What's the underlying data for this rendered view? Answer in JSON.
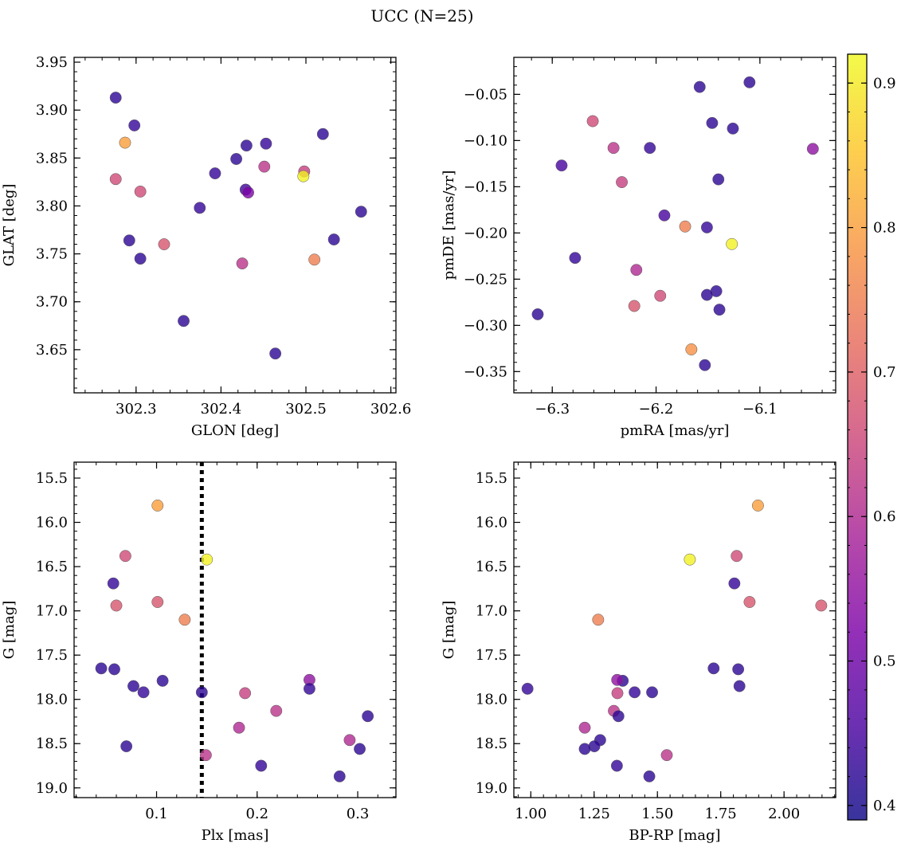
{
  "title": "UCC (N=25)",
  "colorbar": {
    "min": 0.39,
    "max": 0.92,
    "ticks": [
      "0.4",
      "0.5",
      "0.6",
      "0.7",
      "0.8",
      "0.9"
    ],
    "tick_values": [
      0.4,
      0.5,
      0.6,
      0.7,
      0.8,
      0.9
    ],
    "colormap": "plasma"
  },
  "chart_data": [
    {
      "type": "scatter",
      "id": "glon-glat",
      "xlabel": "GLON [deg]",
      "ylabel": "GLAT [deg]",
      "xlim": [
        302.227,
        302.606
      ],
      "ylim": [
        3.605,
        3.955
      ],
      "xticks": [
        302.3,
        302.4,
        302.5,
        302.6
      ],
      "xticklabels": [
        "302.3",
        "302.4",
        "302.5",
        "302.6"
      ],
      "yticks": [
        3.65,
        3.7,
        3.75,
        3.8,
        3.85,
        3.9,
        3.95
      ],
      "yticklabels": [
        "3.65",
        "3.70",
        "3.75",
        "3.80",
        "3.85",
        "3.90",
        "3.95"
      ],
      "points": [
        {
          "x": 302.276,
          "y": 3.913,
          "c": 0.42
        },
        {
          "x": 302.298,
          "y": 3.884,
          "c": 0.43
        },
        {
          "x": 302.287,
          "y": 3.866,
          "c": 0.8
        },
        {
          "x": 302.276,
          "y": 3.828,
          "c": 0.66
        },
        {
          "x": 302.305,
          "y": 3.815,
          "c": 0.66
        },
        {
          "x": 302.292,
          "y": 3.764,
          "c": 0.42
        },
        {
          "x": 302.305,
          "y": 3.745,
          "c": 0.42
        },
        {
          "x": 302.333,
          "y": 3.76,
          "c": 0.68
        },
        {
          "x": 302.356,
          "y": 3.68,
          "c": 0.42
        },
        {
          "x": 302.375,
          "y": 3.798,
          "c": 0.43
        },
        {
          "x": 302.393,
          "y": 3.834,
          "c": 0.43
        },
        {
          "x": 302.418,
          "y": 3.849,
          "c": 0.42
        },
        {
          "x": 302.43,
          "y": 3.863,
          "c": 0.42
        },
        {
          "x": 302.429,
          "y": 3.817,
          "c": 0.44
        },
        {
          "x": 302.432,
          "y": 3.814,
          "c": 0.52
        },
        {
          "x": 302.425,
          "y": 3.74,
          "c": 0.62
        },
        {
          "x": 302.453,
          "y": 3.865,
          "c": 0.43
        },
        {
          "x": 302.451,
          "y": 3.841,
          "c": 0.62
        },
        {
          "x": 302.464,
          "y": 3.646,
          "c": 0.42
        },
        {
          "x": 302.498,
          "y": 3.836,
          "c": 0.64
        },
        {
          "x": 302.497,
          "y": 3.831,
          "c": 0.91
        },
        {
          "x": 302.51,
          "y": 3.744,
          "c": 0.75
        },
        {
          "x": 302.52,
          "y": 3.875,
          "c": 0.42
        },
        {
          "x": 302.533,
          "y": 3.765,
          "c": 0.42
        },
        {
          "x": 302.565,
          "y": 3.794,
          "c": 0.42
        }
      ]
    },
    {
      "type": "scatter",
      "id": "pmra-pmde",
      "xlabel": "pmRA [mas/yr]",
      "ylabel": "pmDE [mas/yr]",
      "xlim": [
        -6.337,
        -6.027
      ],
      "ylim": [
        -0.373,
        -0.01
      ],
      "xticks": [
        -6.3,
        -6.2,
        -6.1
      ],
      "xticklabels": [
        "−6.3",
        "−6.2",
        "−6.1"
      ],
      "yticks": [
        -0.35,
        -0.3,
        -0.25,
        -0.2,
        -0.15,
        -0.1,
        -0.05
      ],
      "yticklabels": [
        "−0.35",
        "−0.30",
        "−0.25",
        "−0.20",
        "−0.15",
        "−0.10",
        "−0.05"
      ],
      "points": [
        {
          "x": -6.11,
          "y": -0.037,
          "c": 0.42
        },
        {
          "x": -6.158,
          "y": -0.042,
          "c": 0.42
        },
        {
          "x": -6.146,
          "y": -0.081,
          "c": 0.42
        },
        {
          "x": -6.126,
          "y": -0.087,
          "c": 0.42
        },
        {
          "x": -6.261,
          "y": -0.079,
          "c": 0.66
        },
        {
          "x": -6.241,
          "y": -0.108,
          "c": 0.62
        },
        {
          "x": -6.206,
          "y": -0.108,
          "c": 0.43
        },
        {
          "x": -6.049,
          "y": -0.109,
          "c": 0.55
        },
        {
          "x": -6.291,
          "y": -0.127,
          "c": 0.45
        },
        {
          "x": -6.233,
          "y": -0.145,
          "c": 0.64
        },
        {
          "x": -6.14,
          "y": -0.142,
          "c": 0.42
        },
        {
          "x": -6.192,
          "y": -0.181,
          "c": 0.45
        },
        {
          "x": -6.172,
          "y": -0.193,
          "c": 0.75
        },
        {
          "x": -6.151,
          "y": -0.194,
          "c": 0.43
        },
        {
          "x": -6.127,
          "y": -0.212,
          "c": 0.91
        },
        {
          "x": -6.278,
          "y": -0.227,
          "c": 0.43
        },
        {
          "x": -6.219,
          "y": -0.24,
          "c": 0.6
        },
        {
          "x": -6.142,
          "y": -0.263,
          "c": 0.42
        },
        {
          "x": -6.151,
          "y": -0.267,
          "c": 0.42
        },
        {
          "x": -6.196,
          "y": -0.268,
          "c": 0.66
        },
        {
          "x": -6.221,
          "y": -0.279,
          "c": 0.68
        },
        {
          "x": -6.139,
          "y": -0.283,
          "c": 0.42
        },
        {
          "x": -6.314,
          "y": -0.288,
          "c": 0.42
        },
        {
          "x": -6.166,
          "y": -0.326,
          "c": 0.78
        },
        {
          "x": -6.153,
          "y": -0.343,
          "c": 0.42
        }
      ]
    },
    {
      "type": "scatter",
      "id": "plx-g",
      "xlabel": "Plx [mas]",
      "ylabel": "G [mag]",
      "xlim": [
        0.018,
        0.338
      ],
      "ylim": [
        19.11,
        15.32
      ],
      "xticks": [
        0.1,
        0.2,
        0.3
      ],
      "xticklabels": [
        "0.1",
        "0.2",
        "0.3"
      ],
      "yticks": [
        15.5,
        16.0,
        16.5,
        17.0,
        17.5,
        18.0,
        18.5,
        19.0
      ],
      "yticklabels": [
        "15.5",
        "16.0",
        "16.5",
        "17.0",
        "17.5",
        "18.0",
        "18.5",
        "19.0"
      ],
      "vline": 0.145,
      "points": [
        {
          "x": 0.101,
          "y": 15.81,
          "c": 0.8
        },
        {
          "x": 0.069,
          "y": 16.38,
          "c": 0.66
        },
        {
          "x": 0.15,
          "y": 16.42,
          "c": 0.91
        },
        {
          "x": 0.057,
          "y": 16.69,
          "c": 0.43
        },
        {
          "x": 0.06,
          "y": 16.94,
          "c": 0.68
        },
        {
          "x": 0.101,
          "y": 16.9,
          "c": 0.68
        },
        {
          "x": 0.128,
          "y": 17.1,
          "c": 0.75
        },
        {
          "x": 0.045,
          "y": 17.65,
          "c": 0.42
        },
        {
          "x": 0.058,
          "y": 17.66,
          "c": 0.42
        },
        {
          "x": 0.077,
          "y": 17.85,
          "c": 0.42
        },
        {
          "x": 0.106,
          "y": 17.79,
          "c": 0.42
        },
        {
          "x": 0.087,
          "y": 17.92,
          "c": 0.43
        },
        {
          "x": 0.07,
          "y": 18.53,
          "c": 0.42
        },
        {
          "x": 0.145,
          "y": 17.92,
          "c": 0.42
        },
        {
          "x": 0.149,
          "y": 18.63,
          "c": 0.62
        },
        {
          "x": 0.188,
          "y": 17.93,
          "c": 0.64
        },
        {
          "x": 0.182,
          "y": 18.32,
          "c": 0.6
        },
        {
          "x": 0.219,
          "y": 18.13,
          "c": 0.62
        },
        {
          "x": 0.204,
          "y": 18.75,
          "c": 0.43
        },
        {
          "x": 0.252,
          "y": 17.78,
          "c": 0.55
        },
        {
          "x": 0.252,
          "y": 17.88,
          "c": 0.43
        },
        {
          "x": 0.282,
          "y": 18.87,
          "c": 0.42
        },
        {
          "x": 0.292,
          "y": 18.46,
          "c": 0.6
        },
        {
          "x": 0.302,
          "y": 18.56,
          "c": 0.42
        },
        {
          "x": 0.31,
          "y": 18.19,
          "c": 0.42
        }
      ]
    },
    {
      "type": "scatter",
      "id": "bprp-g",
      "xlabel": "BP-RP [mag]",
      "ylabel": "G [mag]",
      "xlim": [
        0.933,
        2.204
      ],
      "ylim": [
        19.11,
        15.32
      ],
      "xticks": [
        1.0,
        1.25,
        1.5,
        1.75,
        2.0
      ],
      "xticklabels": [
        "1.00",
        "1.25",
        "1.50",
        "1.75",
        "2.00"
      ],
      "yticks": [
        15.5,
        16.0,
        16.5,
        17.0,
        17.5,
        18.0,
        18.5,
        19.0
      ],
      "yticklabels": [
        "15.5",
        "16.0",
        "16.5",
        "17.0",
        "17.5",
        "18.0",
        "18.5",
        "19.0"
      ],
      "points": [
        {
          "x": 1.897,
          "y": 15.81,
          "c": 0.8
        },
        {
          "x": 1.813,
          "y": 16.38,
          "c": 0.66
        },
        {
          "x": 1.628,
          "y": 16.42,
          "c": 0.91
        },
        {
          "x": 1.804,
          "y": 16.69,
          "c": 0.43
        },
        {
          "x": 2.147,
          "y": 16.94,
          "c": 0.68
        },
        {
          "x": 1.864,
          "y": 16.9,
          "c": 0.68
        },
        {
          "x": 1.266,
          "y": 17.1,
          "c": 0.75
        },
        {
          "x": 1.722,
          "y": 17.65,
          "c": 0.42
        },
        {
          "x": 1.819,
          "y": 17.66,
          "c": 0.42
        },
        {
          "x": 1.824,
          "y": 17.85,
          "c": 0.42
        },
        {
          "x": 1.363,
          "y": 17.79,
          "c": 0.42
        },
        {
          "x": 1.341,
          "y": 17.78,
          "c": 0.55
        },
        {
          "x": 1.41,
          "y": 17.92,
          "c": 0.43
        },
        {
          "x": 1.479,
          "y": 17.92,
          "c": 0.42
        },
        {
          "x": 0.987,
          "y": 17.88,
          "c": 0.43
        },
        {
          "x": 1.342,
          "y": 17.93,
          "c": 0.64
        },
        {
          "x": 1.328,
          "y": 18.13,
          "c": 0.62
        },
        {
          "x": 1.346,
          "y": 18.19,
          "c": 0.42
        },
        {
          "x": 1.213,
          "y": 18.32,
          "c": 0.6
        },
        {
          "x": 1.274,
          "y": 18.46,
          "c": 0.42
        },
        {
          "x": 1.251,
          "y": 18.53,
          "c": 0.42
        },
        {
          "x": 1.213,
          "y": 18.56,
          "c": 0.42
        },
        {
          "x": 1.537,
          "y": 18.63,
          "c": 0.62
        },
        {
          "x": 1.34,
          "y": 18.75,
          "c": 0.43
        },
        {
          "x": 1.468,
          "y": 18.87,
          "c": 0.42
        }
      ]
    }
  ]
}
